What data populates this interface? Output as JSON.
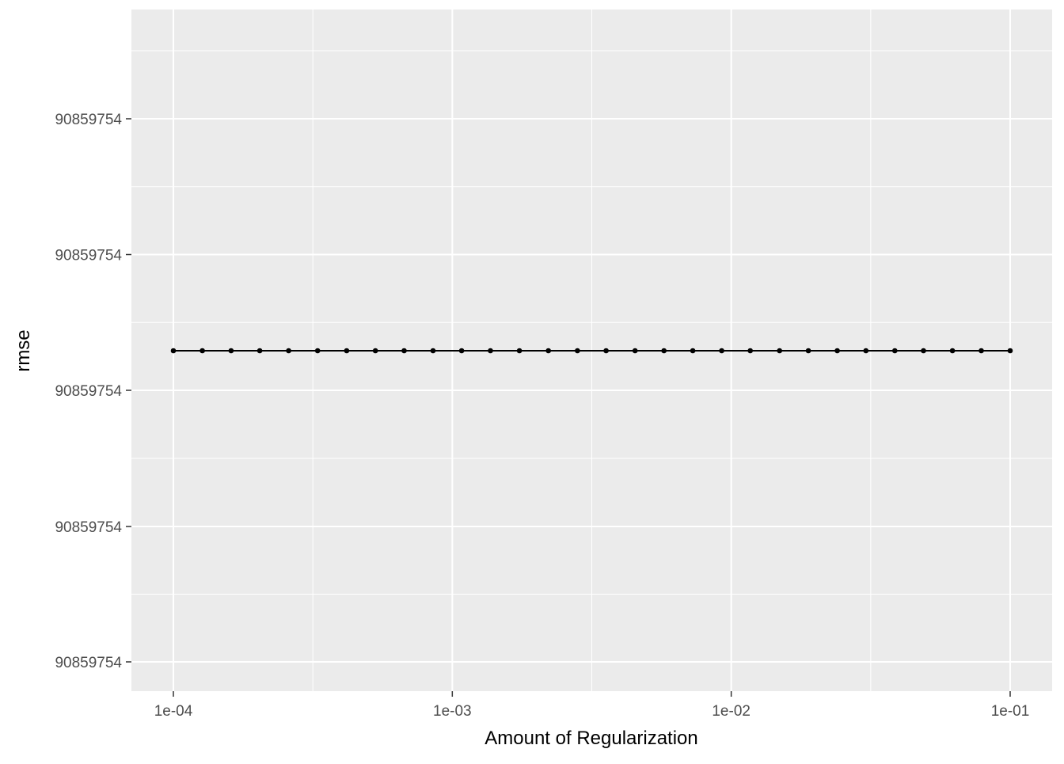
{
  "chart_data": {
    "type": "line",
    "title": "",
    "xlabel": "Amount of Regularization",
    "ylabel": "rmse",
    "x_scale": "log10",
    "xlim": [
      0.0001,
      0.1
    ],
    "x_ticks": [
      0.0001,
      0.001,
      0.01,
      0.1
    ],
    "x_tick_labels": [
      "1e-04",
      "1e-03",
      "1e-02",
      "1e-01"
    ],
    "y_tick_labels": [
      "90859754",
      "90859754",
      "90859754",
      "90859754",
      "90859754"
    ],
    "grid": true,
    "legend": "none",
    "series": [
      {
        "x": [
          0.0001,
          0.000127,
          0.000161,
          0.000204,
          0.000259,
          0.000329,
          0.000418,
          0.00053,
          0.000672,
          0.000853,
          0.00108,
          0.00137,
          0.00174,
          0.00221,
          0.00281,
          0.00356,
          0.00452,
          0.00574,
          0.00728,
          0.00924,
          0.0117,
          0.0149,
          0.0189,
          0.024,
          0.0304,
          0.0386,
          0.0489,
          0.0621,
          0.0788,
          0.1
        ],
        "y": [
          90859754,
          90859754,
          90859754,
          90859754,
          90859754,
          90859754,
          90859754,
          90859754,
          90859754,
          90859754,
          90859754,
          90859754,
          90859754,
          90859754,
          90859754,
          90859754,
          90859754,
          90859754,
          90859754,
          90859754,
          90859754,
          90859754,
          90859754,
          90859754,
          90859754,
          90859754,
          90859754,
          90859754,
          90859754,
          90859754
        ]
      }
    ],
    "colors": {
      "panel_background": "#ebebeb",
      "grid": "#ffffff",
      "line": "#000000",
      "tick_text": "#4d4d4d",
      "title_text": "#000000"
    }
  }
}
